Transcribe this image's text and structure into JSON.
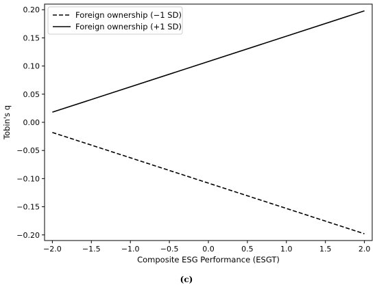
{
  "chart_data": {
    "type": "line",
    "title": "",
    "xlabel": "Composite ESG Performance (ESGT)",
    "ylabel": "Tobin's q",
    "xlim": [
      -2.1,
      2.1
    ],
    "ylim": [
      -0.21,
      0.21
    ],
    "xticks": [
      -2.0,
      -1.5,
      -1.0,
      -0.5,
      0.0,
      0.5,
      1.0,
      1.5,
      2.0
    ],
    "xtick_labels": [
      "−2.0",
      "−1.5",
      "−1.0",
      "−0.5",
      "0.0",
      "0.5",
      "1.0",
      "1.5",
      "2.0"
    ],
    "yticks": [
      -0.2,
      -0.15,
      -0.1,
      -0.05,
      0.0,
      0.05,
      0.1,
      0.15,
      0.2
    ],
    "ytick_labels": [
      "−0.20",
      "−0.15",
      "−0.10",
      "−0.05",
      "0.00",
      "0.05",
      "0.10",
      "0.15",
      "0.20"
    ],
    "grid": false,
    "legend_position": "top-left",
    "series": [
      {
        "name": "Foreign ownership (−1 SD)",
        "style": "dashed",
        "color": "#000000",
        "x": [
          -2.0,
          2.0
        ],
        "y": [
          -0.018,
          -0.198
        ]
      },
      {
        "name": "Foreign ownership (+1 SD)",
        "style": "solid",
        "color": "#000000",
        "x": [
          -2.0,
          2.0
        ],
        "y": [
          0.018,
          0.198
        ]
      }
    ]
  },
  "caption": "(c)"
}
